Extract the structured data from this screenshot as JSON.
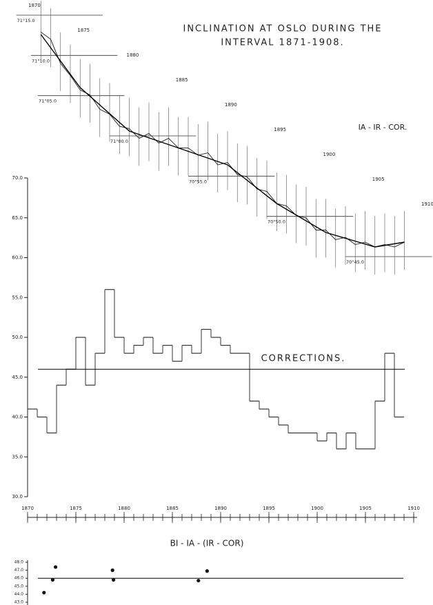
{
  "chart_data": [
    {
      "type": "line",
      "title": [
        "INCLINATION AT OSLO DURING THE",
        "INTERVAL 1871-1908."
      ],
      "annotation": "IA - IR - COR.",
      "x": [
        1871,
        1872,
        1873,
        1874,
        1875,
        1876,
        1877,
        1878,
        1879,
        1880,
        1881,
        1882,
        1883,
        1884,
        1885,
        1886,
        1887,
        1888,
        1889,
        1890,
        1891,
        1892,
        1893,
        1894,
        1895,
        1896,
        1897,
        1898,
        1899,
        1900,
        1901,
        1902,
        1903,
        1904,
        1905,
        1906,
        1907,
        1908
      ],
      "values": [
        71.215,
        71.2,
        71.15,
        71.125,
        71.095,
        71.085,
        71.055,
        71.045,
        71.02,
        71.015,
        70.995,
        71.005,
        70.985,
        70.995,
        70.975,
        70.975,
        70.96,
        70.965,
        70.94,
        70.945,
        70.92,
        70.915,
        70.89,
        70.885,
        70.86,
        70.855,
        70.835,
        70.83,
        70.805,
        70.805,
        70.785,
        70.79,
        70.775,
        70.78,
        70.77,
        70.775,
        70.77,
        70.78
      ],
      "trend_x": [
        1871,
        1875,
        1880,
        1885,
        1890,
        1895,
        1900,
        1905,
        1908
      ],
      "trend_values": [
        71.21,
        71.1,
        71.01,
        70.975,
        70.94,
        70.86,
        70.8,
        70.77,
        70.78
      ],
      "color": "#333333",
      "xlim": [
        1870,
        1910
      ],
      "xticks": [
        1870,
        1875,
        1880,
        1885,
        1890,
        1895,
        1900,
        1905,
        1910
      ],
      "ylim": [
        70.75,
        71.25
      ],
      "yticks": [
        {
          "value": 71.25,
          "label": "71°15.0"
        },
        {
          "value": 71.1667,
          "label": "71°10.0"
        },
        {
          "value": 71.0833,
          "label": "71°05.0"
        },
        {
          "value": 71.0,
          "label": "71°00.0"
        },
        {
          "value": 70.9167,
          "label": "70°55.0"
        },
        {
          "value": 70.8333,
          "label": "70°50.0"
        },
        {
          "value": 70.75,
          "label": "70°45.0"
        }
      ]
    },
    {
      "type": "step",
      "title": "CORRECTIONS.",
      "x": [
        1870,
        1871,
        1872,
        1873,
        1874,
        1875,
        1876,
        1877,
        1878,
        1879,
        1880,
        1881,
        1882,
        1883,
        1884,
        1885,
        1886,
        1887,
        1888,
        1889,
        1890,
        1891,
        1892,
        1893,
        1894,
        1895,
        1896,
        1897,
        1898,
        1899,
        1900,
        1901,
        1902,
        1903,
        1904,
        1905,
        1906,
        1907,
        1908
      ],
      "values": [
        41,
        40,
        38,
        44,
        46,
        50,
        44,
        48,
        56,
        50,
        48,
        49,
        50,
        48,
        49,
        47,
        49,
        48,
        51,
        50,
        49,
        48,
        48,
        42,
        41,
        40,
        39,
        38,
        38,
        38,
        37,
        38,
        36,
        38,
        36,
        36,
        42,
        48,
        40
      ],
      "reference_line": 46,
      "color": "#333333",
      "xlim": [
        1870,
        1910
      ],
      "xticks": [
        1870,
        1875,
        1880,
        1885,
        1890,
        1895,
        1900,
        1905,
        1910
      ],
      "minor_xticks": [
        1870,
        1871,
        1872,
        1873,
        1874,
        1875,
        1876,
        1877,
        1878,
        1879,
        1880,
        1881,
        1882,
        1883,
        1884,
        1885,
        1886,
        1887,
        1888,
        1889,
        1890,
        1891,
        1892,
        1893,
        1894,
        1895,
        1896,
        1897,
        1898,
        1899,
        1900,
        1901,
        1902,
        1903,
        1904,
        1905,
        1906,
        1907,
        1908,
        1909,
        1910
      ],
      "ylim": [
        30,
        70
      ],
      "yticks": [
        {
          "value": 30,
          "label": "30.0"
        },
        {
          "value": 35,
          "label": "35.0"
        },
        {
          "value": 40,
          "label": "40.0"
        },
        {
          "value": 45,
          "label": "45.0"
        },
        {
          "value": 50,
          "label": "50.0"
        },
        {
          "value": 55,
          "label": "55.0"
        },
        {
          "value": 60,
          "label": "60.0"
        },
        {
          "value": 65,
          "label": "65.0"
        },
        {
          "value": 70,
          "label": "70.0"
        }
      ]
    },
    {
      "type": "scatter",
      "title": "BI - IA - (IR - COR)",
      "x": [
        1871.7,
        1872.6,
        1872.9,
        1878.8,
        1878.9,
        1887.7,
        1888.6
      ],
      "values": [
        44.2,
        45.8,
        47.4,
        47.0,
        45.8,
        45.7,
        46.9
      ],
      "reference_line": 46,
      "color": "#111111",
      "xlim": [
        1870,
        1910
      ],
      "ylim": [
        43,
        48
      ],
      "yticks": [
        {
          "value": 43,
          "label": "43.0"
        },
        {
          "value": 44,
          "label": "44.0"
        },
        {
          "value": 45,
          "label": "45.0"
        },
        {
          "value": 46,
          "label": "46.0"
        },
        {
          "value": 47,
          "label": "47.0"
        },
        {
          "value": 48,
          "label": "48.0"
        }
      ]
    }
  ]
}
